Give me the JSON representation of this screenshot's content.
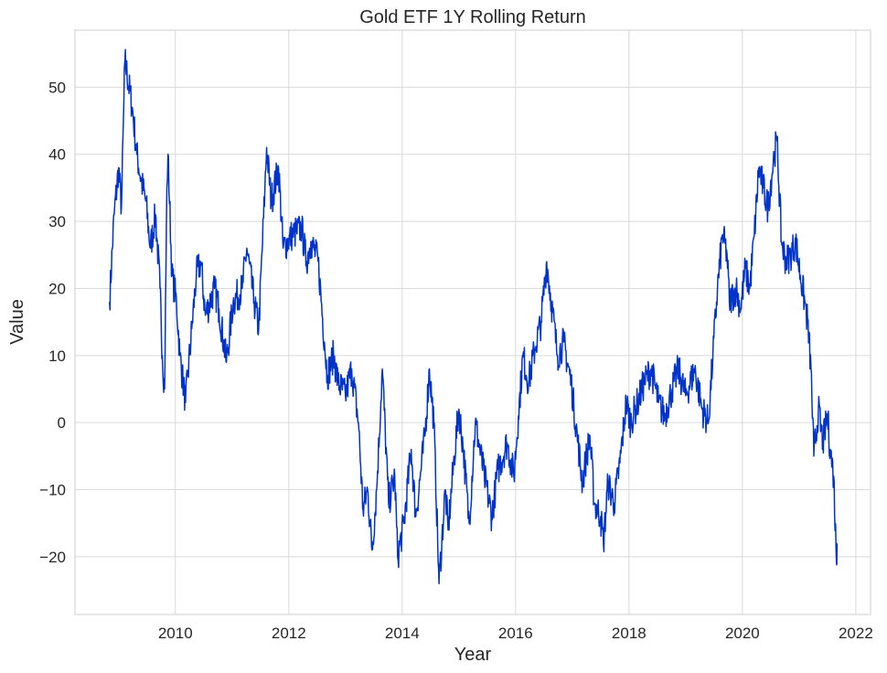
{
  "chart_data": {
    "type": "line",
    "title": "Gold ETF 1Y Rolling Return",
    "xlabel": "Year",
    "ylabel": "Value",
    "xlim": [
      2008.23,
      2022.26
    ],
    "ylim": [
      -28.6,
      58.5
    ],
    "xticks": [
      "2010",
      "2012",
      "2014",
      "2016",
      "2018",
      "2020",
      "2022"
    ],
    "xtick_values": [
      2010,
      2012,
      2014,
      2016,
      2018,
      2020,
      2022
    ],
    "yticks": [
      "−20",
      "−10",
      "0",
      "10",
      "20",
      "30",
      "40",
      "50"
    ],
    "ytick_values": [
      -20,
      -10,
      0,
      10,
      20,
      30,
      40,
      50
    ],
    "grid": true,
    "line_color": "#0033cc",
    "series": [
      {
        "name": "Gold ETF 1Y Rolling Return",
        "x": [
          2008.84,
          2008.92,
          2009.0,
          2009.05,
          2009.11,
          2009.24,
          2009.32,
          2009.4,
          2009.48,
          2009.56,
          2009.65,
          2009.73,
          2009.77,
          2009.81,
          2009.85,
          2009.87,
          2009.94,
          2010.02,
          2010.08,
          2010.18,
          2010.29,
          2010.37,
          2010.45,
          2010.53,
          2010.69,
          2010.77,
          2010.9,
          2011.02,
          2011.18,
          2011.26,
          2011.39,
          2011.47,
          2011.58,
          2011.61,
          2011.69,
          2011.82,
          2011.9,
          2012.06,
          2012.23,
          2012.31,
          2012.39,
          2012.52,
          2012.63,
          2012.68,
          2012.79,
          2012.87,
          2013.0,
          2013.11,
          2013.23,
          2013.31,
          2013.39,
          2013.47,
          2013.55,
          2013.65,
          2013.76,
          2013.87,
          2013.92,
          2014.03,
          2014.16,
          2014.24,
          2014.32,
          2014.4,
          2014.48,
          2014.56,
          2014.65,
          2014.76,
          2014.81,
          2014.92,
          2015.0,
          2015.08,
          2015.18,
          2015.29,
          2015.37,
          2015.45,
          2015.58,
          2015.69,
          2015.85,
          2015.97,
          2016.05,
          2016.13,
          2016.23,
          2016.34,
          2016.45,
          2016.55,
          2016.63,
          2016.74,
          2016.85,
          2016.98,
          2017.1,
          2017.18,
          2017.23,
          2017.31,
          2017.39,
          2017.5,
          2017.55,
          2017.63,
          2017.74,
          2017.84,
          2017.95,
          2018.03,
          2018.15,
          2018.27,
          2018.39,
          2018.52,
          2018.63,
          2018.76,
          2018.87,
          2019.0,
          2019.16,
          2019.29,
          2019.4,
          2019.48,
          2019.56,
          2019.65,
          2019.73,
          2019.77,
          2019.89,
          2019.97,
          2020.05,
          2020.13,
          2020.21,
          2020.29,
          2020.37,
          2020.45,
          2020.56,
          2020.61,
          2020.69,
          2020.77,
          2020.85,
          2020.94,
          2021.02,
          2021.1,
          2021.15,
          2021.21,
          2021.26,
          2021.34,
          2021.42,
          2021.5,
          2021.55,
          2021.61,
          2021.66,
          2021.67
        ],
        "y": [
          18,
          31,
          38,
          32,
          54,
          47,
          40,
          36,
          33,
          26,
          31,
          20,
          10,
          5,
          35,
          40,
          22,
          18,
          10,
          3,
          14,
          22,
          24,
          16,
          20,
          17,
          9,
          18,
          20,
          26,
          18,
          14,
          35,
          41,
          33,
          38,
          26,
          28,
          29,
          24,
          27,
          24,
          12,
          7,
          10,
          6,
          4,
          8,
          0,
          -13,
          -10,
          -19,
          -10,
          8,
          -12,
          -8,
          -20,
          -15,
          -4,
          -14,
          -8,
          -2,
          8,
          0,
          -24,
          -10,
          -16,
          -5,
          2,
          -4,
          -15,
          0,
          -4,
          -8,
          -14,
          -7,
          -3,
          -8,
          1,
          10,
          6,
          11,
          15,
          24,
          18,
          10,
          12,
          6,
          -3,
          -9,
          -6,
          -2,
          -12,
          -14,
          -18,
          -9,
          -12,
          -6,
          3,
          0,
          3,
          6,
          8,
          3,
          1,
          5,
          8,
          4,
          8,
          2,
          0,
          10,
          20,
          28,
          25,
          18,
          20,
          17,
          23,
          20,
          28,
          38,
          35,
          32,
          40,
          42,
          27,
          24,
          25,
          27,
          22,
          18,
          15,
          8,
          -5,
          2,
          -3,
          1,
          -4,
          -8,
          -21,
          -18
        ]
      }
    ]
  }
}
